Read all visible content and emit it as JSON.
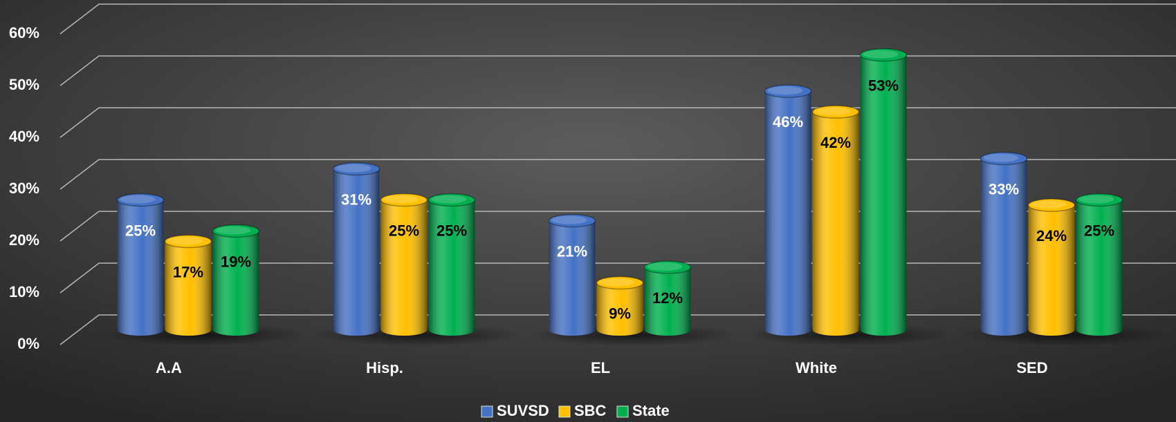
{
  "chart_data": {
    "type": "bar",
    "categories": [
      "A.A",
      "Hisp.",
      "EL",
      "White",
      "SED"
    ],
    "series": [
      {
        "name": "SUVSD",
        "color": "#4472c4",
        "values": [
          25,
          31,
          21,
          46,
          33
        ],
        "value_labels": [
          "25%",
          "31%",
          "21%",
          "46%",
          "33%"
        ]
      },
      {
        "name": "SBC",
        "color": "#ffc000",
        "values": [
          17,
          25,
          9,
          42,
          24
        ],
        "value_labels": [
          "17%",
          "25%",
          "9%",
          "42%",
          "24%"
        ]
      },
      {
        "name": "State",
        "color": "#00b050",
        "values": [
          19,
          25,
          12,
          53,
          25
        ],
        "value_labels": [
          "19%",
          "25%",
          "12%",
          "53%",
          "25%"
        ]
      }
    ],
    "ylim": [
      0,
      60
    ],
    "yticks": [
      {
        "value": 0,
        "label": "0%"
      },
      {
        "value": 10,
        "label": "10%"
      },
      {
        "value": 20,
        "label": "20%"
      },
      {
        "value": 30,
        "label": "30%"
      },
      {
        "value": 40,
        "label": "40%"
      },
      {
        "value": 50,
        "label": "50%"
      },
      {
        "value": 60,
        "label": "60%"
      }
    ],
    "grid": true,
    "legend": "bottom"
  }
}
